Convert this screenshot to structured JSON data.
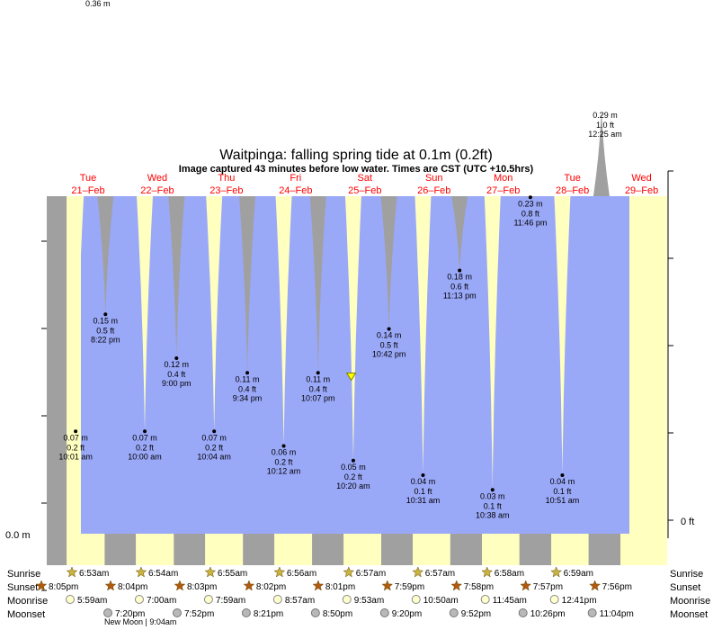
{
  "chart_data": {
    "type": "area",
    "title": "Waitpinga: falling  spring tide at 0.1m (0.2ft)",
    "subtitle": "Image captured 43 minutes before low water. Times are CST (UTC +10.5hrs)",
    "y_unit_left": "m",
    "y_unit_right": "ft",
    "ylim": [
      0,
      0.36
    ],
    "left_axis_labels": [
      "0.36 m",
      "0.0 m"
    ],
    "right_axis_labels": [
      "0 ft"
    ],
    "days": [
      {
        "dow": "Tue",
        "date": "21–Feb"
      },
      {
        "dow": "Wed",
        "date": "22–Feb"
      },
      {
        "dow": "Thu",
        "date": "23–Feb"
      },
      {
        "dow": "Fri",
        "date": "24–Feb"
      },
      {
        "dow": "Sat",
        "date": "25–Feb"
      },
      {
        "dow": "Sun",
        "date": "26–Feb"
      },
      {
        "dow": "Mon",
        "date": "27–Feb"
      },
      {
        "dow": "Tue",
        "date": "28–Feb"
      },
      {
        "dow": "Wed",
        "date": "29–Feb"
      }
    ],
    "tides": [
      {
        "kind": "low",
        "day": 0,
        "time": "10:01 am",
        "m": "0.07 m",
        "ft": "0.2 ft",
        "value": 0.07
      },
      {
        "kind": "high",
        "day": 0,
        "time": "8:22 pm",
        "m": "0.15 m",
        "ft": "0.5 ft",
        "value": 0.15
      },
      {
        "kind": "low",
        "day": 1,
        "time": "10:00 am",
        "m": "0.07 m",
        "ft": "0.2 ft",
        "value": 0.07
      },
      {
        "kind": "high",
        "day": 1,
        "time": "9:00 pm",
        "m": "0.12 m",
        "ft": "0.4 ft",
        "value": 0.12
      },
      {
        "kind": "low",
        "day": 2,
        "time": "10:04 am",
        "m": "0.07 m",
        "ft": "0.2 ft",
        "value": 0.07
      },
      {
        "kind": "high",
        "day": 2,
        "time": "9:34 pm",
        "m": "0.11 m",
        "ft": "0.4 ft",
        "value": 0.11
      },
      {
        "kind": "low",
        "day": 3,
        "time": "10:12 am",
        "m": "0.06 m",
        "ft": "0.2 ft",
        "value": 0.06
      },
      {
        "kind": "high",
        "day": 3,
        "time": "10:07 pm",
        "m": "0.11 m",
        "ft": "0.4 ft",
        "value": 0.11
      },
      {
        "kind": "low",
        "day": 4,
        "time": "10:20 am",
        "m": "0.05 m",
        "ft": "0.2 ft",
        "value": 0.05
      },
      {
        "kind": "high",
        "day": 4,
        "time": "10:42 pm",
        "m": "0.14 m",
        "ft": "0.5 ft",
        "value": 0.14
      },
      {
        "kind": "low",
        "day": 5,
        "time": "10:31 am",
        "m": "0.04 m",
        "ft": "0.1 ft",
        "value": 0.04
      },
      {
        "kind": "high",
        "day": 5,
        "time": "11:13 pm",
        "m": "0.18 m",
        "ft": "0.6 ft",
        "value": 0.18
      },
      {
        "kind": "low",
        "day": 6,
        "time": "10:38 am",
        "m": "0.03 m",
        "ft": "0.1 ft",
        "value": 0.03
      },
      {
        "kind": "high",
        "day": 6,
        "time": "11:46 pm",
        "m": "0.23 m",
        "ft": "0.8 ft",
        "value": 0.23
      },
      {
        "kind": "low",
        "day": 7,
        "time": "10:51 am",
        "m": "0.04 m",
        "ft": "0.1 ft",
        "value": 0.04
      },
      {
        "kind": "high",
        "day": 8,
        "time": "12:25 am",
        "m": "0.29 m",
        "ft": "1.0 ft",
        "value": 0.29
      }
    ],
    "current_level_m": 0.05,
    "current_time": "9:37 am",
    "current_day": 4,
    "row_labels": {
      "sunrise": "Sunrise",
      "sunset": "Sunset",
      "moonrise": "Moonrise",
      "moonset": "Moonset"
    },
    "sunrise": [
      "6:53am",
      "6:54am",
      "6:55am",
      "6:56am",
      "6:57am",
      "6:57am",
      "6:58am",
      "6:59am"
    ],
    "sunset": [
      "8:05pm",
      "8:04pm",
      "8:03pm",
      "8:02pm",
      "8:01pm",
      "7:59pm",
      "7:58pm",
      "7:57pm",
      "7:56pm"
    ],
    "moonrise": [
      "5:59am",
      "7:00am",
      "7:59am",
      "8:57am",
      "9:53am",
      "10:50am",
      "11:45am",
      "12:41pm"
    ],
    "moonset": [
      "7:20pm",
      "7:52pm",
      "8:21pm",
      "8:50pm",
      "9:20pm",
      "9:52pm",
      "10:26pm",
      "11:04pm"
    ],
    "moon_phase_note": "New Moon | 9:04am",
    "colors": {
      "water": "#9aa8f8",
      "day": "#ffffc0",
      "night": "#a0a0a0",
      "date_text": "#ff0000",
      "sunrise_star": "#c8b440",
      "sunset_star": "#b05a10"
    }
  }
}
